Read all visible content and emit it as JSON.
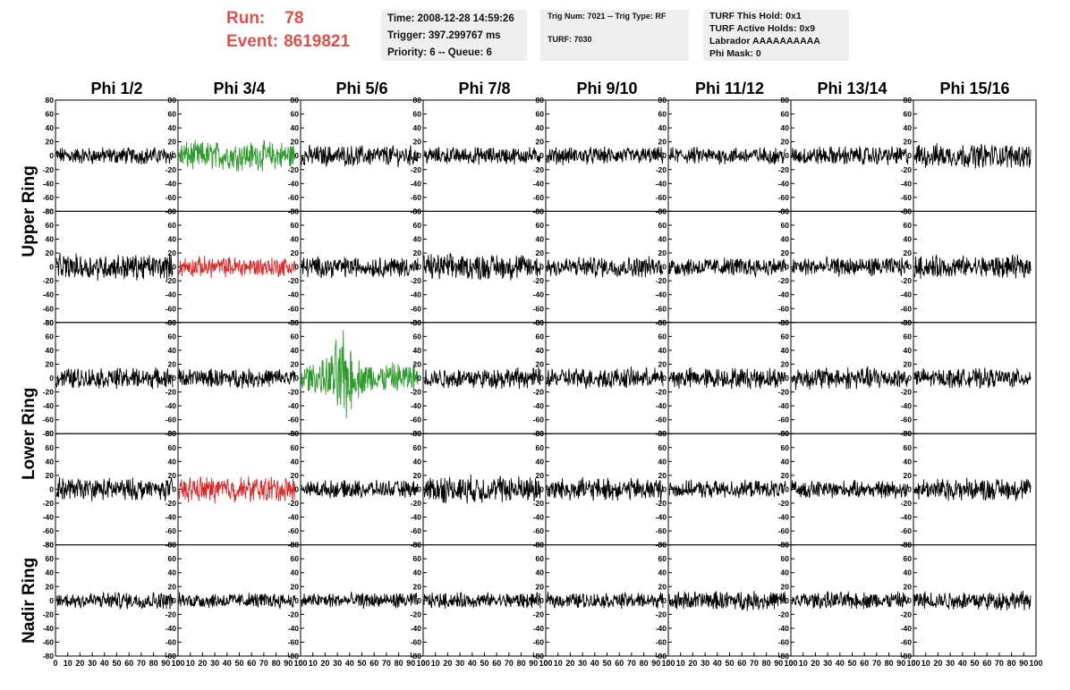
{
  "header": {
    "run_label": "Run:",
    "run_value": "78",
    "event_label": "Event:",
    "event_value": "8619821",
    "info_box_1": [
      "Time: 2008-12-28 14:59:26",
      "Trigger: 397.299767 ms",
      "Priority: 6 -- Queue: 6"
    ],
    "info_box_2": [
      "Trig Num: 7021 -- Trig Type: RF",
      "TURF: 7030"
    ],
    "info_box_3": [
      "TURF This Hold: 0x1",
      "TURF Active Holds: 0x9",
      "Labrador AAAAAAAAAA",
      "Phi Mask: 0"
    ]
  },
  "chart_data": {
    "type": "line",
    "columns": [
      "Phi 1/2",
      "Phi 3/4",
      "Phi 5/6",
      "Phi 7/8",
      "Phi 9/10",
      "Phi 11/12",
      "Phi 13/14",
      "Phi 15/16"
    ],
    "row_groups": [
      {
        "label": "Upper Ring",
        "rows": [
          0,
          1
        ]
      },
      {
        "label": "Lower Ring",
        "rows": [
          2,
          3
        ]
      },
      {
        "label": "Nadir Ring",
        "rows": [
          4
        ]
      }
    ],
    "ylim": [
      -80,
      80
    ],
    "yticks": [
      -80,
      -60,
      -40,
      -20,
      0,
      20,
      40,
      60,
      80
    ],
    "xlim": [
      0,
      100
    ],
    "xticks": [
      0,
      10,
      20,
      30,
      40,
      50,
      60,
      70,
      80,
      90,
      100
    ],
    "default_color": "#000000",
    "highlighted_panels": [
      {
        "row": 0,
        "col": 1,
        "color": "#2e9a2e"
      },
      {
        "row": 1,
        "col": 1,
        "color": "#d62a2a"
      },
      {
        "row": 2,
        "col": 2,
        "color": "#2e9a2e"
      },
      {
        "row": 3,
        "col": 1,
        "color": "#d62a2a"
      }
    ],
    "amplitude": [
      [
        10,
        17,
        12,
        10,
        10,
        10,
        11,
        14
      ],
      [
        15,
        12,
        12,
        15,
        12,
        11,
        11,
        13
      ],
      [
        12,
        11,
        20,
        12,
        12,
        12,
        13,
        11
      ],
      [
        13,
        15,
        10,
        16,
        13,
        10,
        10,
        13
      ],
      [
        10,
        9,
        9,
        9,
        9,
        11,
        10,
        11
      ]
    ]
  }
}
